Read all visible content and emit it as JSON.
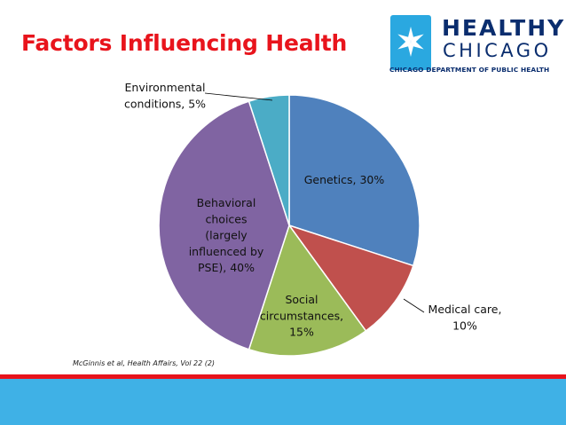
{
  "slide": {
    "title": "Factors Influencing Health",
    "citation": "McGinnis et al, Health Affairs, Vol 22 (2)"
  },
  "logo": {
    "word1": "HEALTHY",
    "word2": "CHICAGO",
    "subtitle": "CHICAGO DEPARTMENT OF PUBLIC HEALTH",
    "icon": "six-pointed-star-icon",
    "colors": {
      "box": "#2aa8e0",
      "text": "#0a2d6e"
    }
  },
  "colors": {
    "title": "#e8141c",
    "band_red": "#e8141c",
    "band_blue": "#3fb1e6"
  },
  "chart_data": {
    "type": "pie",
    "title": "",
    "start_angle_deg": 0,
    "direction": "clockwise",
    "legend": "none",
    "slices": [
      {
        "name": "Genetics",
        "value": 30,
        "color": "#4f81bd",
        "label_lines": [
          "Genetics, 30%"
        ]
      },
      {
        "name": "Medical care",
        "value": 10,
        "color": "#c0504d",
        "label_lines": [
          "Medical care,",
          "10%"
        ]
      },
      {
        "name": "Social circumstances",
        "value": 15,
        "color": "#9bbb59",
        "label_lines": [
          "Social",
          "circumstances,",
          "15%"
        ]
      },
      {
        "name": "Behavioral choices (largely influenced by PSE)",
        "value": 40,
        "color": "#8064a2",
        "label_lines": [
          "Behavioral",
          "choices",
          "(largely",
          "influenced by",
          "PSE), 40%"
        ]
      },
      {
        "name": "Environmental conditions",
        "value": 5,
        "color": "#4bacc6",
        "label_lines": [
          "Environmental",
          "conditions, 5%"
        ]
      }
    ]
  }
}
